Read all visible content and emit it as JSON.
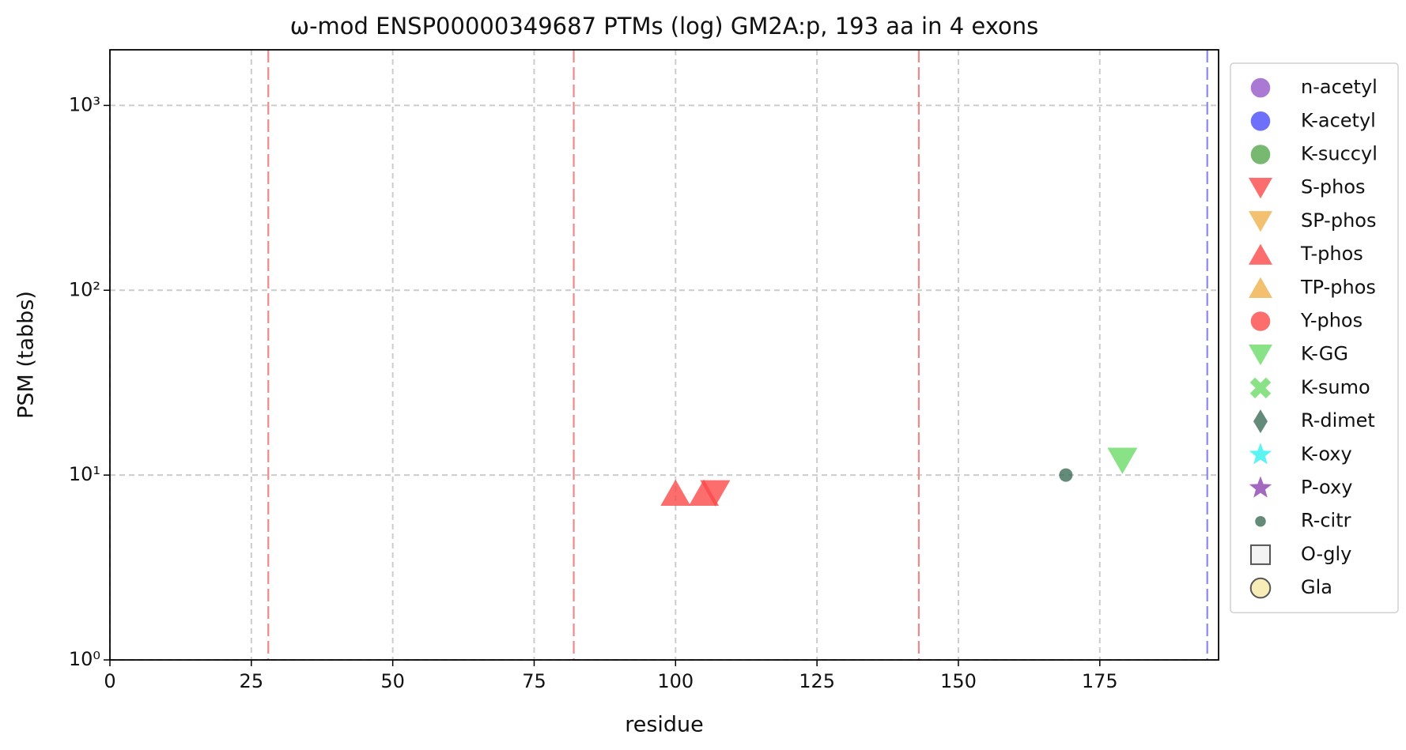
{
  "chart_data": {
    "type": "scatter",
    "title": "ω-mod ENSP00000349687 PTMs (log) GM2A:p, 193 aa in 4 exons",
    "xlabel": "residue",
    "ylabel": "PSM (tabbs)",
    "xlim": [
      0,
      196
    ],
    "xticks": [
      0,
      25,
      50,
      75,
      100,
      125,
      150,
      175
    ],
    "ylim": [
      1,
      2000
    ],
    "yscale": "log",
    "yticks": [
      {
        "value": 1,
        "label": "10⁰"
      },
      {
        "value": 10,
        "label": "10¹"
      },
      {
        "value": 100,
        "label": "10²"
      },
      {
        "value": 1000,
        "label": "10³"
      }
    ],
    "grid": true,
    "legend": "outside-right",
    "vlines": [
      {
        "x": 28,
        "color": "#f08888"
      },
      {
        "x": 82,
        "color": "#f08888"
      },
      {
        "x": 143,
        "color": "#f08888"
      },
      {
        "x": 194,
        "color": "#8888f0"
      }
    ],
    "series": [
      {
        "name": "n-acetyl",
        "color": "#9457c8",
        "marker": "o",
        "x": [],
        "values": []
      },
      {
        "name": "K-acetyl",
        "color": "#4a4cf8",
        "marker": "o",
        "x": [],
        "values": []
      },
      {
        "name": "K-succyl",
        "color": "#55a84c",
        "marker": "o",
        "x": [],
        "values": []
      },
      {
        "name": "S-phos",
        "color": "#fb4a4a",
        "marker": "v",
        "x": [
          107
        ],
        "values": [
          8
        ]
      },
      {
        "name": "SP-phos",
        "color": "#f0b04c",
        "marker": "v",
        "x": [],
        "values": []
      },
      {
        "name": "T-phos",
        "color": "#fb4a4a",
        "marker": "^",
        "x": [
          100,
          105
        ],
        "values": [
          8,
          8
        ]
      },
      {
        "name": "TP-phos",
        "color": "#f0b04c",
        "marker": "^",
        "x": [],
        "values": []
      },
      {
        "name": "Y-phos",
        "color": "#fb4a4a",
        "marker": "o",
        "x": [],
        "values": []
      },
      {
        "name": "K-GG",
        "color": "#6cdc68",
        "marker": "v",
        "x": [
          179
        ],
        "values": [
          12
        ]
      },
      {
        "name": "K-sumo",
        "color": "#6cdc68",
        "marker": "X",
        "x": [],
        "values": []
      },
      {
        "name": "R-dimet",
        "color": "#3d6e58",
        "marker": "d",
        "x": [],
        "values": []
      },
      {
        "name": "K-oxy",
        "color": "#33f0f0",
        "marker": "*",
        "x": [],
        "values": []
      },
      {
        "name": "P-oxy",
        "color": "#8c44b0",
        "marker": "*",
        "x": [],
        "values": []
      },
      {
        "name": "R-citr",
        "color": "#3d6e58",
        "marker": ".",
        "x": [
          169
        ],
        "values": [
          10
        ]
      },
      {
        "name": "O-gly",
        "color": "#f0f0f0",
        "edgecolor": "#555555",
        "marker": "s",
        "x": [],
        "values": []
      },
      {
        "name": "Gla",
        "color": "#f6e8a4",
        "edgecolor": "#555555",
        "marker": "o",
        "x": [],
        "values": []
      }
    ]
  }
}
